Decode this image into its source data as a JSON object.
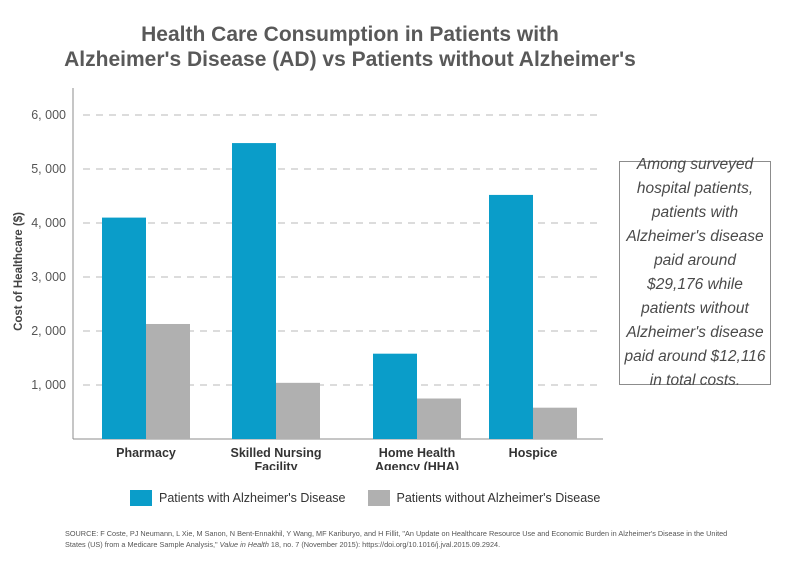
{
  "title": {
    "line1": "Health Care Consumption in Patients with",
    "line2": "Alzheimer's Disease (AD) vs Patients without Alzheimer's"
  },
  "callout": {
    "text": "Among surveyed hospital patients, patients with Alzheimer's disease paid around $29,176 while patients without Alzheimer's disease paid around $12,116 in total costs."
  },
  "source": {
    "part1": "SOURCE: F Coste, PJ Neumann, L Xie, M Sanon, N Bent-Ennakhil, Y Wang, MF Kariburyo, and H Fillit, \"An Update on Healthcare Resource Use and Economic Burden in Alzheimer's Disease in the United States (US) from a Medicare Sample Analysis,\" ",
    "journal": "Value in Health",
    "part2": " 18, no. 7 (November 2015): https://doi.org/10.1016/j.jval.2015.09.2924."
  },
  "colors": {
    "with_ad": "#0a9dc9",
    "without_ad": "#b0b0b0",
    "grid": "#b8b8b8",
    "axis": "#8c8c8c"
  },
  "chart_data": {
    "type": "bar",
    "title": "Health Care Consumption in Patients with Alzheimer's Disease (AD) vs Patients without Alzheimer's",
    "xlabel": "",
    "ylabel": "Cost of Healthcare ($)",
    "ylim": [
      0,
      6500
    ],
    "yticks": [
      1000,
      2000,
      3000,
      4000,
      5000,
      6000
    ],
    "ytick_labels": [
      "1, 000",
      "2, 000",
      "3, 000",
      "4, 000",
      "5, 000",
      "6, 000"
    ],
    "grid": true,
    "legend_position": "bottom",
    "categories": [
      [
        "Pharmacy"
      ],
      [
        "Skilled Nursing",
        "Facility"
      ],
      [
        "Home Health",
        "Agency (HHA)"
      ],
      [
        "Hospice"
      ]
    ],
    "series": [
      {
        "name": "Patients with Alzheimer's Disease",
        "values": [
          4100,
          5480,
          1580,
          4520
        ]
      },
      {
        "name": "Patients without Alzheimer's Disease",
        "values": [
          2130,
          1040,
          750,
          580
        ]
      }
    ]
  }
}
